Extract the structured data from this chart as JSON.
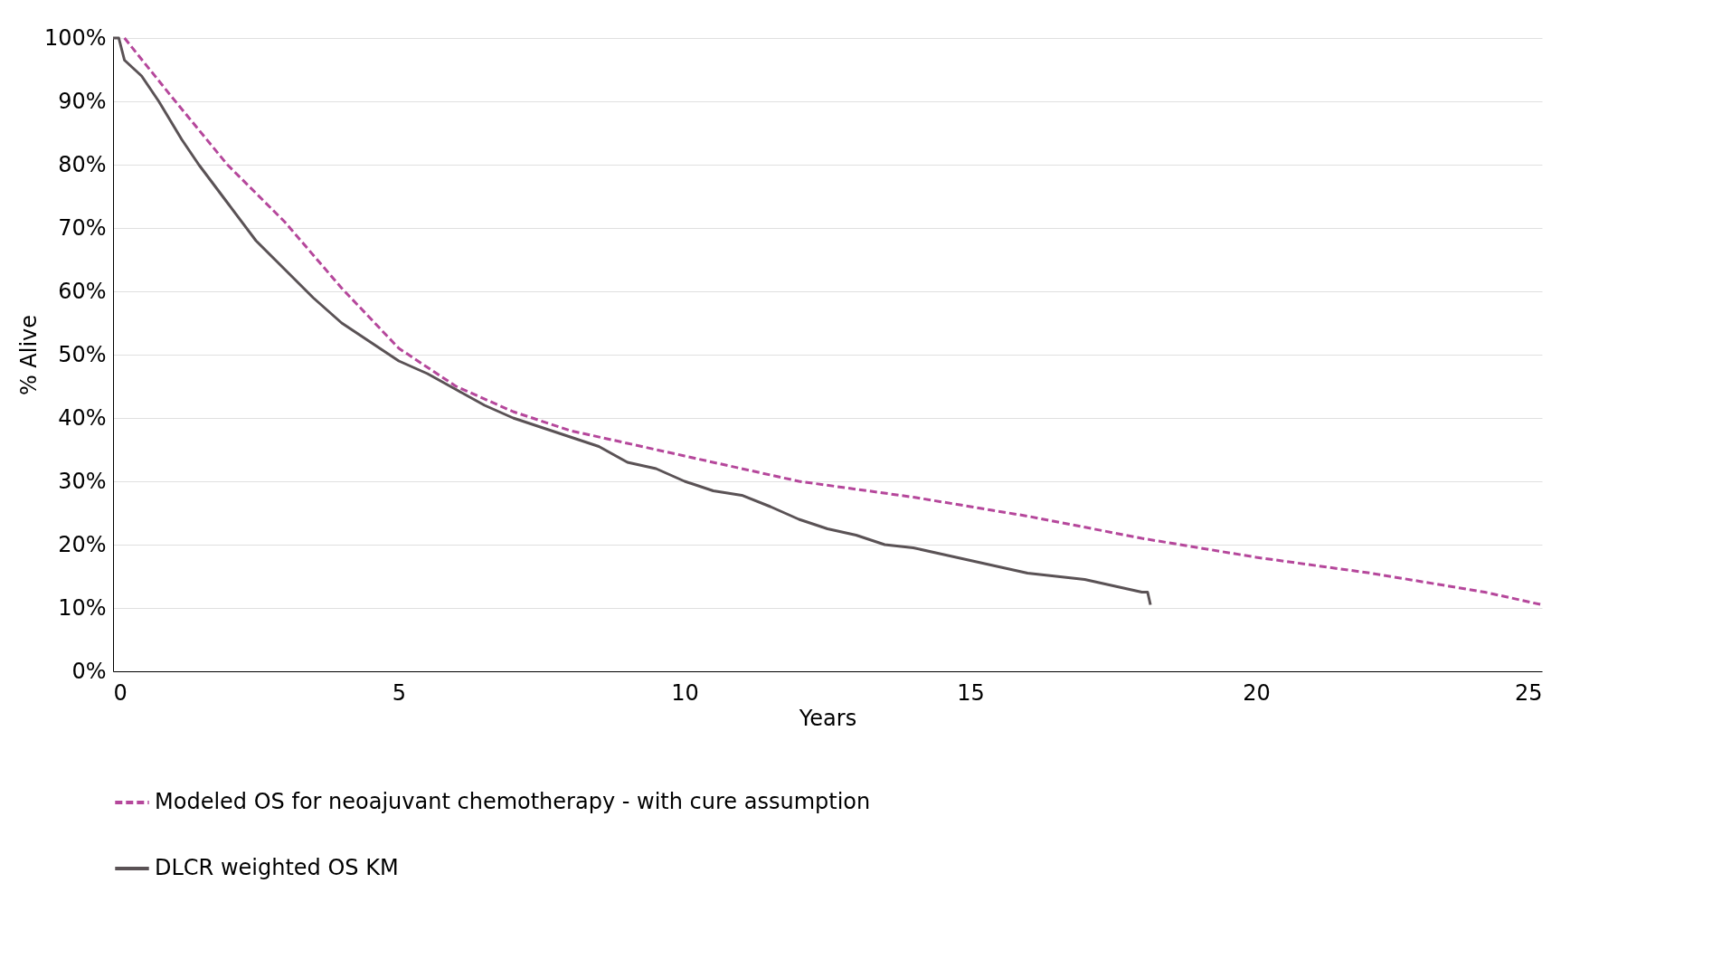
{
  "chart_data": {
    "type": "line",
    "xlabel": "Years",
    "ylabel": "% Alive",
    "xlim": [
      0,
      25
    ],
    "xticks": [
      0,
      5,
      10,
      15,
      20,
      25
    ],
    "ylim": [
      0,
      100
    ],
    "yticks": [
      {
        "value": 0,
        "label": "0%"
      },
      {
        "value": 10,
        "label": "10%"
      },
      {
        "value": 20,
        "label": "20%"
      },
      {
        "value": 30,
        "label": "30%"
      },
      {
        "value": 40,
        "label": "40%"
      },
      {
        "value": 50,
        "label": "50%"
      },
      {
        "value": 60,
        "label": "60%"
      },
      {
        "value": 70,
        "label": "70%"
      },
      {
        "value": 80,
        "label": "80%"
      },
      {
        "value": 90,
        "label": "90%"
      },
      {
        "value": 100,
        "label": "100%"
      }
    ],
    "grid": "y",
    "legend": "bottom",
    "series": [
      {
        "name": "Modeled OS for neoajuvant chemotherapy - with cure assumption",
        "color": "#b5479b",
        "line_style": "dashed",
        "x": [
          0.2,
          1,
          2,
          3,
          4,
          5,
          6,
          7,
          8,
          9,
          10,
          12,
          14,
          15,
          16,
          18,
          20,
          22,
          24,
          25
        ],
        "values": [
          100,
          91,
          80,
          71,
          60.5,
          51,
          45,
          41,
          38,
          36,
          34,
          30,
          27.5,
          26,
          24.5,
          21,
          18,
          15.5,
          12.5,
          10.5
        ]
      },
      {
        "name": "DLCR weighted OS KM",
        "color": "#5a5255",
        "line_style": "solid",
        "x": [
          0,
          0.1,
          0.2,
          0.5,
          0.8,
          1,
          1.2,
          1.5,
          2,
          2.5,
          3,
          3.5,
          4,
          4.5,
          5,
          5.5,
          6,
          6.5,
          7,
          7.5,
          8,
          8.5,
          9,
          9.5,
          10,
          10.5,
          11,
          11.5,
          12,
          12.5,
          13,
          13.5,
          14,
          14.5,
          15,
          15.5,
          16,
          16.5,
          17,
          17.5,
          18,
          18.1,
          18.15
        ],
        "values": [
          100,
          100,
          96.5,
          94,
          90,
          87,
          84,
          80,
          74,
          68,
          63.5,
          59,
          55,
          52,
          49,
          47,
          44.5,
          42,
          40,
          38.5,
          37,
          35.5,
          33,
          32,
          30,
          28.5,
          27.8,
          26,
          24,
          22.5,
          21.5,
          20,
          19.5,
          18.5,
          17.5,
          16.5,
          15.5,
          15,
          14.5,
          13.5,
          12.5,
          12.5,
          10.5
        ]
      }
    ]
  }
}
